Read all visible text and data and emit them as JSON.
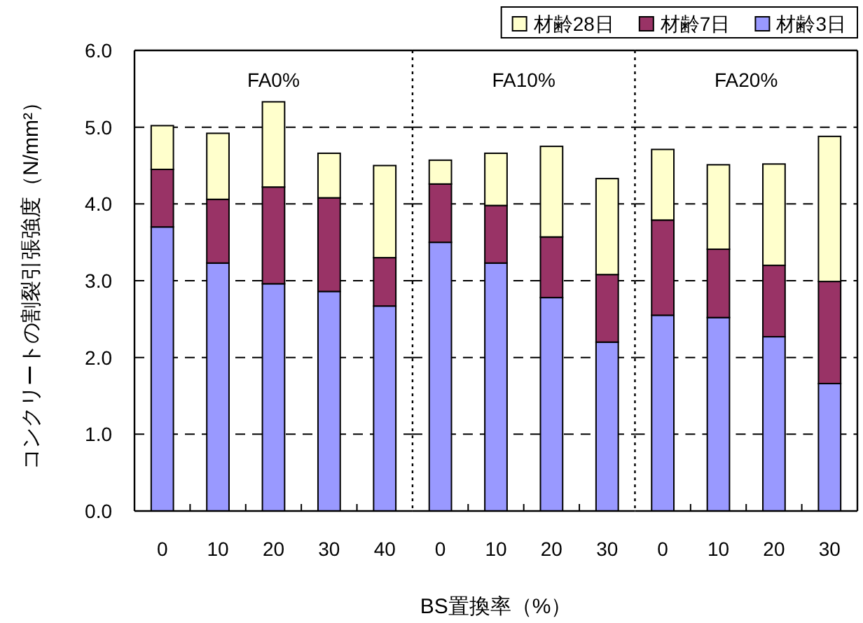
{
  "chart_data": [
    {
      "type": "bar",
      "stacked": true,
      "title": "FA0%",
      "categories": [
        "0",
        "10",
        "20",
        "30",
        "40"
      ],
      "series": [
        {
          "color": "#9999ff",
          "values": [
            3.7,
            3.23,
            2.96,
            2.86,
            2.67
          ]
        },
        {
          "color": "#993366",
          "values": [
            0.75,
            0.83,
            1.26,
            1.22,
            0.63
          ]
        },
        {
          "color": "#ffffcc",
          "values": [
            0.57,
            0.86,
            1.11,
            0.58,
            1.2
          ]
        }
      ],
      "ylabel": "コンクリートの割裂引張強度（N/mm²）",
      "ylim": [
        0,
        6
      ],
      "yticks": [
        {
          "value": 0,
          "label": "0.0"
        },
        {
          "value": 1,
          "label": "1.0"
        },
        {
          "value": 2,
          "label": "2.0"
        },
        {
          "value": 3,
          "label": "3.0"
        },
        {
          "value": 4,
          "label": "4.0"
        },
        {
          "value": 5,
          "label": "5.0"
        },
        {
          "value": 6,
          "label": "6.0"
        }
      ],
      "grid": "y"
    },
    {
      "type": "bar",
      "stacked": true,
      "title": "FA10%",
      "categories": [
        "0",
        "10",
        "20",
        "30"
      ],
      "series": [
        {
          "color": "#9999ff",
          "values": [
            3.5,
            3.23,
            2.78,
            2.2
          ]
        },
        {
          "color": "#993366",
          "values": [
            0.76,
            0.75,
            0.79,
            0.88
          ]
        },
        {
          "color": "#ffffcc",
          "values": [
            0.31,
            0.68,
            1.18,
            1.25
          ]
        }
      ],
      "xlabel": "BS置換率（%）",
      "ylim": [
        0,
        6
      ],
      "yticks": [
        {
          "value": 0,
          "label": null
        },
        {
          "value": 1,
          "label": null
        },
        {
          "value": 2,
          "label": null
        },
        {
          "value": 3,
          "label": null
        },
        {
          "value": 4,
          "label": null
        },
        {
          "value": 5,
          "label": null
        },
        {
          "value": 6,
          "label": null
        }
      ],
      "grid": "y",
      "tick_labels": "x"
    },
    {
      "type": "bar",
      "stacked": true,
      "title": "FA20%",
      "categories": [
        "0",
        "10",
        "20",
        "30"
      ],
      "series": [
        {
          "name": "材齢3日",
          "color": "#9999ff",
          "values": [
            2.55,
            2.52,
            2.27,
            1.66
          ]
        },
        {
          "name": "材齢7日",
          "color": "#993366",
          "values": [
            1.24,
            0.89,
            0.93,
            1.33
          ]
        },
        {
          "name": "材齢28日",
          "color": "#ffffcc",
          "values": [
            0.92,
            1.1,
            1.32,
            1.89
          ]
        }
      ],
      "ylim": [
        0,
        6
      ],
      "yticks": [
        {
          "value": 0,
          "label": null
        },
        {
          "value": 1,
          "label": null
        },
        {
          "value": 2,
          "label": null
        },
        {
          "value": 3,
          "label": null
        },
        {
          "value": 4,
          "label": null
        },
        {
          "value": 5,
          "label": null
        },
        {
          "value": 6,
          "label": null
        }
      ],
      "grid": "y",
      "tick_labels": "x",
      "legend": "top"
    }
  ]
}
